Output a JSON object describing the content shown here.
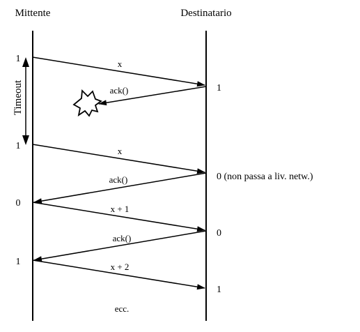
{
  "diagram": {
    "sender_label": "Mittente",
    "receiver_label": "Destinatario",
    "timeout_label": "Timeout",
    "sender_seq": [
      "1",
      "1",
      "0",
      "1"
    ],
    "receiver_seq": [
      "1",
      "0 (non passa a liv. netw.)",
      "0",
      "1"
    ],
    "messages": [
      {
        "label": "x",
        "direction": "to-receiver"
      },
      {
        "label": "ack()",
        "direction": "to-sender",
        "lost": true
      },
      {
        "label": "x",
        "direction": "to-receiver"
      },
      {
        "label": "ack()",
        "direction": "to-sender"
      },
      {
        "label": "x + 1",
        "direction": "to-receiver"
      },
      {
        "label": "ack()",
        "direction": "to-sender"
      },
      {
        "label": "x + 2",
        "direction": "to-receiver"
      }
    ],
    "ellipsis": "ecc.",
    "lost_marker_icon": "explosion-icon"
  }
}
